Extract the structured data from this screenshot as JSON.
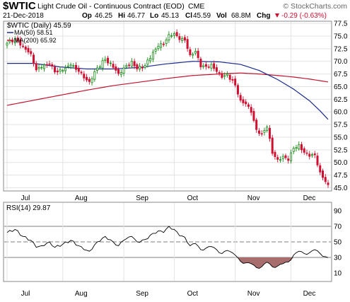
{
  "header": {
    "symbol": "$WTIC",
    "description": "Light Crude Oil - Continuous Contract (EOD)",
    "exchange": "CME",
    "watermark": "© StockCharts.com",
    "date": "21-Dec-2018",
    "open_label": "Op",
    "open_value": "46.25",
    "high_label": "Hi",
    "high_value": "46.77",
    "low_label": "Lo",
    "low_value": "45.13",
    "close_label": "Cl",
    "close_value": "45.59",
    "volume_label": "Vol",
    "volume_value": "68.8M",
    "change_label": "Chg",
    "change_value": "-0.29 (-0.63%)",
    "change_icon": "down-triangle-icon"
  },
  "colors": {
    "up": "#1a8c1a",
    "down": "#d01030",
    "ma50": "#1a2a8c",
    "ma200": "#c0142e",
    "rsi_fill": "#a86e6e",
    "grid": "#e3e3e3",
    "axis": "#666666"
  },
  "chart_data": [
    {
      "type": "candlestick",
      "legend": [
        {
          "label": "$WTIC (Daily) 45.59",
          "color": "#000000"
        },
        {
          "label": "MA(50) 58.51",
          "color": "#1a2a8c"
        },
        {
          "label": "MA(200) 65.92",
          "color": "#c0142e"
        }
      ],
      "ylim": [
        44.5,
        77.8
      ],
      "yticks": [
        45.0,
        47.5,
        50.0,
        52.5,
        55.0,
        57.5,
        60.0,
        62.5,
        65.0,
        67.5,
        70.0,
        72.5,
        75.0,
        77.5
      ],
      "xlabels": [
        {
          "label": "Jul",
          "day": 0
        },
        {
          "label": "Aug",
          "day": 21
        },
        {
          "label": "Sep",
          "day": 44
        },
        {
          "label": "Oct",
          "day": 63
        },
        {
          "label": "Nov",
          "day": 86
        },
        {
          "label": "Dec",
          "day": 107
        }
      ],
      "last_day": 121,
      "anchors": [
        [
          0,
          73.6
        ],
        [
          3,
          74.5
        ],
        [
          6,
          73.0
        ],
        [
          9,
          71.5
        ],
        [
          11,
          68.3
        ],
        [
          13,
          68.8
        ],
        [
          16,
          69.5
        ],
        [
          18,
          67.9
        ],
        [
          21,
          68.2
        ],
        [
          24,
          69.3
        ],
        [
          27,
          68.0
        ],
        [
          29,
          66.7
        ],
        [
          31,
          66.0
        ],
        [
          34,
          68.7
        ],
        [
          37,
          70.4
        ],
        [
          40,
          68.8
        ],
        [
          42,
          67.6
        ],
        [
          44,
          68.7
        ],
        [
          47,
          70.0
        ],
        [
          49,
          68.5
        ],
        [
          52,
          69.2
        ],
        [
          55,
          71.8
        ],
        [
          57,
          73.0
        ],
        [
          59,
          73.3
        ],
        [
          61,
          75.3
        ],
        [
          63,
          75.5
        ],
        [
          65,
          74.3
        ],
        [
          67,
          74.2
        ],
        [
          69,
          71.3
        ],
        [
          71,
          72.0
        ],
        [
          73,
          68.9
        ],
        [
          75,
          69.0
        ],
        [
          77,
          69.4
        ],
        [
          79,
          68.0
        ],
        [
          81,
          66.8
        ],
        [
          83,
          67.5
        ],
        [
          86,
          65.3
        ],
        [
          88,
          62.3
        ],
        [
          90,
          61.6
        ],
        [
          92,
          59.9
        ],
        [
          94,
          56.5
        ],
        [
          96,
          55.7
        ],
        [
          98,
          57.0
        ],
        [
          100,
          51.8
        ],
        [
          102,
          50.6
        ],
        [
          104,
          51.2
        ],
        [
          106,
          50.4
        ],
        [
          108,
          52.8
        ],
        [
          110,
          53.5
        ],
        [
          112,
          52.0
        ],
        [
          114,
          51.2
        ],
        [
          116,
          51.5
        ],
        [
          118,
          48.1
        ],
        [
          120,
          46.2
        ],
        [
          121,
          45.59
        ]
      ],
      "ma50": [
        [
          0,
          69.6
        ],
        [
          10,
          69.6
        ],
        [
          20,
          68.9
        ],
        [
          30,
          68.5
        ],
        [
          40,
          68.5
        ],
        [
          50,
          68.8
        ],
        [
          60,
          69.5
        ],
        [
          70,
          70.0
        ],
        [
          80,
          69.9
        ],
        [
          88,
          69.4
        ],
        [
          95,
          68.2
        ],
        [
          102,
          66.4
        ],
        [
          108,
          64.5
        ],
        [
          114,
          62.2
        ],
        [
          118,
          60.2
        ],
        [
          121,
          58.51
        ]
      ],
      "ma200": [
        [
          0,
          61.3
        ],
        [
          10,
          62.3
        ],
        [
          20,
          63.3
        ],
        [
          30,
          64.3
        ],
        [
          40,
          65.2
        ],
        [
          50,
          65.9
        ],
        [
          60,
          66.6
        ],
        [
          70,
          67.2
        ],
        [
          80,
          67.5
        ],
        [
          88,
          67.7
        ],
        [
          95,
          67.5
        ],
        [
          102,
          67.2
        ],
        [
          108,
          66.9
        ],
        [
          114,
          66.5
        ],
        [
          121,
          65.92
        ]
      ]
    },
    {
      "type": "line",
      "legend": [
        {
          "label": "RSI(14) 29.87",
          "color": "#000000"
        }
      ],
      "ylim": [
        0,
        100
      ],
      "yticks": [
        10,
        30,
        50,
        70,
        90
      ],
      "reference_lines": [
        30,
        50,
        70
      ],
      "xlabels": [
        {
          "label": "Jul",
          "day": 0
        },
        {
          "label": "Aug",
          "day": 21
        },
        {
          "label": "Sep",
          "day": 44
        },
        {
          "label": "Oct",
          "day": 63
        },
        {
          "label": "Nov",
          "day": 86
        },
        {
          "label": "Dec",
          "day": 107
        }
      ],
      "values": [
        [
          0,
          62
        ],
        [
          3,
          66
        ],
        [
          6,
          57
        ],
        [
          9,
          52
        ],
        [
          11,
          43
        ],
        [
          13,
          45
        ],
        [
          16,
          50
        ],
        [
          18,
          43
        ],
        [
          21,
          47
        ],
        [
          24,
          52
        ],
        [
          27,
          45
        ],
        [
          29,
          40
        ],
        [
          31,
          38
        ],
        [
          34,
          50
        ],
        [
          37,
          57
        ],
        [
          40,
          50
        ],
        [
          42,
          45
        ],
        [
          44,
          52
        ],
        [
          47,
          57
        ],
        [
          49,
          50
        ],
        [
          52,
          53
        ],
        [
          55,
          61
        ],
        [
          57,
          64
        ],
        [
          59,
          62
        ],
        [
          61,
          70
        ],
        [
          63,
          66
        ],
        [
          65,
          58
        ],
        [
          67,
          56
        ],
        [
          69,
          45
        ],
        [
          71,
          48
        ],
        [
          73,
          40
        ],
        [
          75,
          42
        ],
        [
          77,
          44
        ],
        [
          79,
          40
        ],
        [
          81,
          35
        ],
        [
          83,
          39
        ],
        [
          86,
          33
        ],
        [
          88,
          25
        ],
        [
          90,
          23
        ],
        [
          92,
          22
        ],
        [
          94,
          17
        ],
        [
          96,
          18
        ],
        [
          98,
          24
        ],
        [
          100,
          18
        ],
        [
          102,
          19
        ],
        [
          104,
          22
        ],
        [
          106,
          24
        ],
        [
          108,
          33
        ],
        [
          110,
          38
        ],
        [
          112,
          35
        ],
        [
          114,
          36
        ],
        [
          116,
          40
        ],
        [
          118,
          35
        ],
        [
          120,
          31
        ],
        [
          121,
          29.87
        ]
      ]
    }
  ]
}
